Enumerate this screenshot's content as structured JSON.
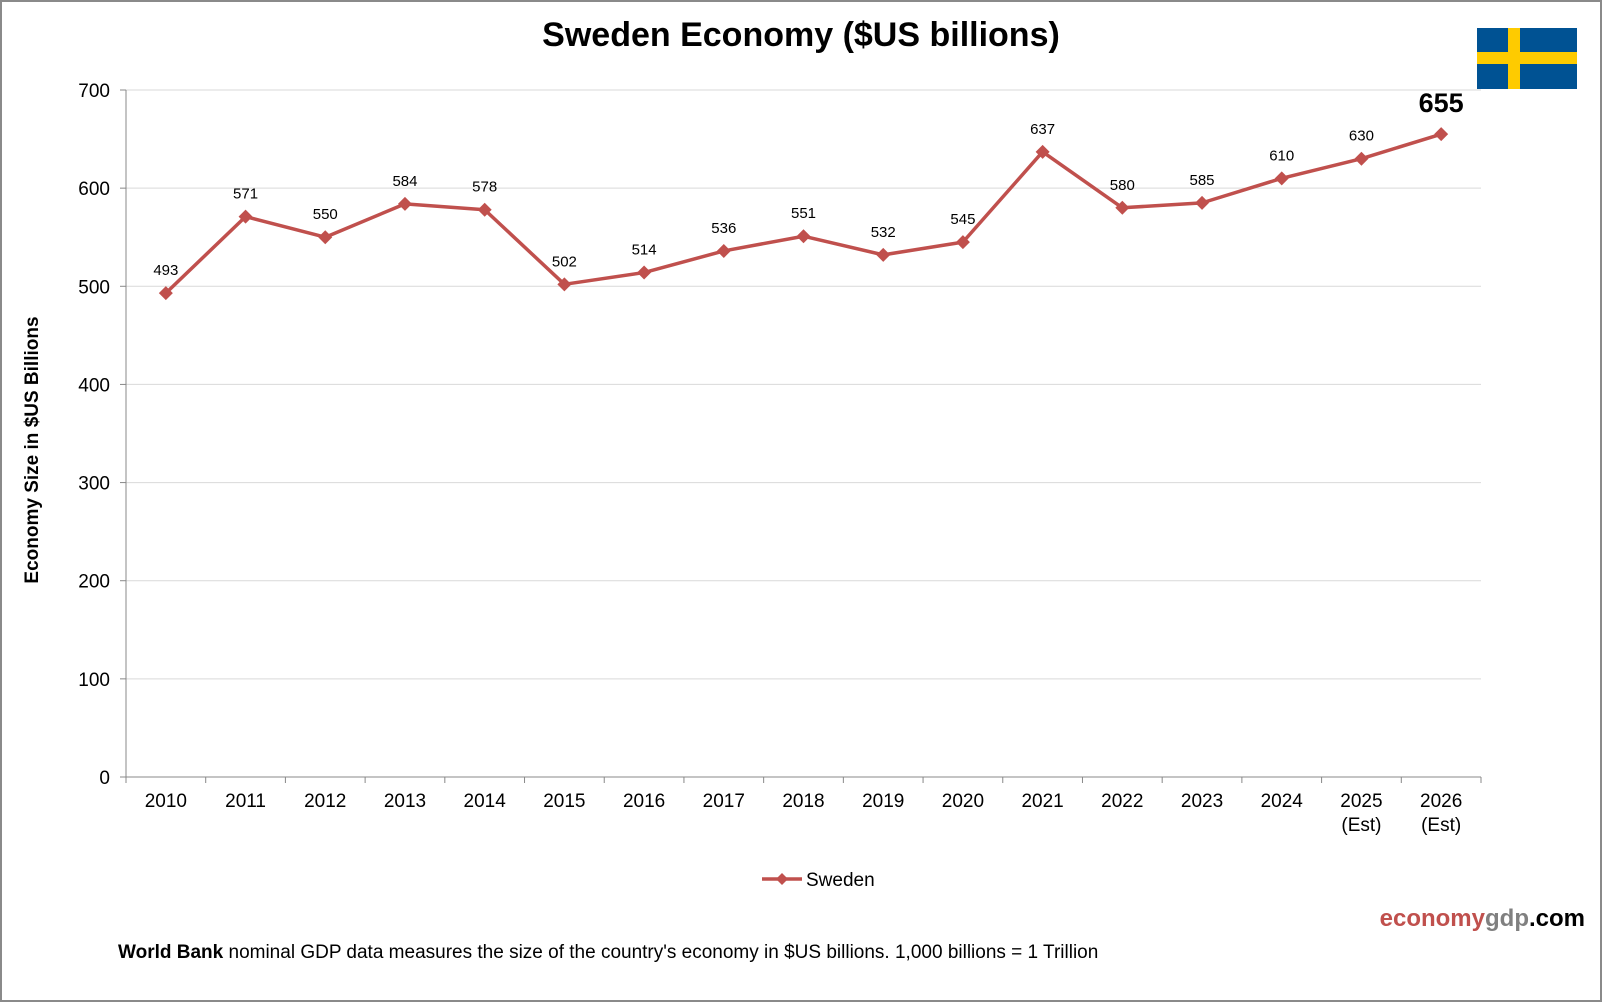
{
  "chart_data": {
    "type": "line",
    "title": "Sweden Economy ($US billions)",
    "xlabel": "",
    "ylabel": "Economy Size in $US Billions",
    "ylim": [
      0,
      700
    ],
    "yticks": [
      0,
      100,
      200,
      300,
      400,
      500,
      600,
      700
    ],
    "grid": true,
    "legend_position": "bottom",
    "categories": [
      "2010",
      "2011",
      "2012",
      "2013",
      "2014",
      "2015",
      "2016",
      "2017",
      "2018",
      "2019",
      "2020",
      "2021",
      "2022",
      "2023",
      "2024",
      "2025 (Est)",
      "2026 (Est)"
    ],
    "series": [
      {
        "name": "Sweden",
        "color": "#c0504d",
        "values": [
          493,
          571,
          550,
          584,
          578,
          502,
          514,
          536,
          551,
          532,
          545,
          637,
          580,
          585,
          610,
          630,
          655
        ]
      }
    ],
    "highlight_label": "655"
  },
  "branding": {
    "part1": "economy",
    "part2": "gdp",
    "part3": ".com",
    "colors": [
      "#c0504d",
      "#808080",
      "#000000"
    ]
  },
  "footer": {
    "bold": "World Bank",
    "text": " nominal GDP data  measures the size of the country's economy in $US billions.  1,000 billions = 1 Trillion"
  },
  "flag": {
    "name": "sweden-flag",
    "blue": "#005293",
    "yellow": "#fecb00"
  }
}
